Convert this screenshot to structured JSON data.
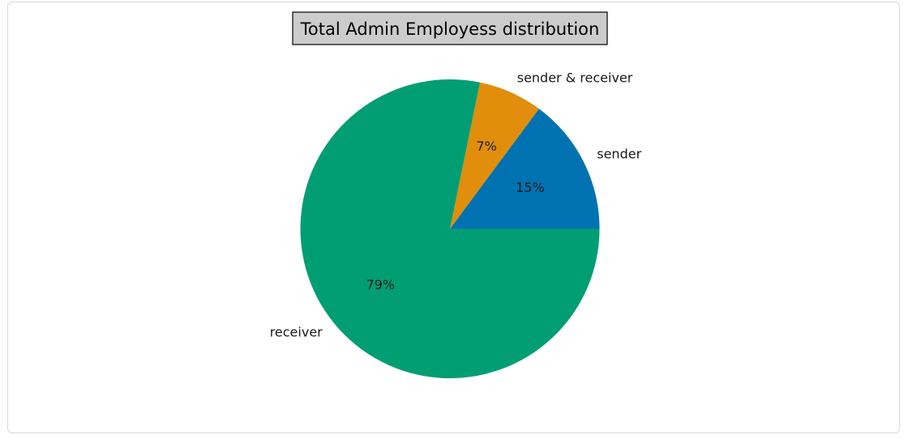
{
  "chart_data": {
    "type": "pie",
    "title": "Total Admin Employess distribution",
    "slices": [
      {
        "label": "sender",
        "value": 15,
        "pct_label": "15%",
        "color": "#0072b2"
      },
      {
        "label": "sender & receiver",
        "value": 7,
        "pct_label": "7%",
        "color": "#e08e0b"
      },
      {
        "label": "receiver",
        "value": 79,
        "pct_label": "79%",
        "color": "#029e73"
      }
    ],
    "start_angle_deg": 0,
    "direction": "counterclockwise"
  },
  "colors": {
    "title_box_bg": "#cccccc",
    "title_box_border": "#000000",
    "card_border": "#d9d9d9"
  }
}
